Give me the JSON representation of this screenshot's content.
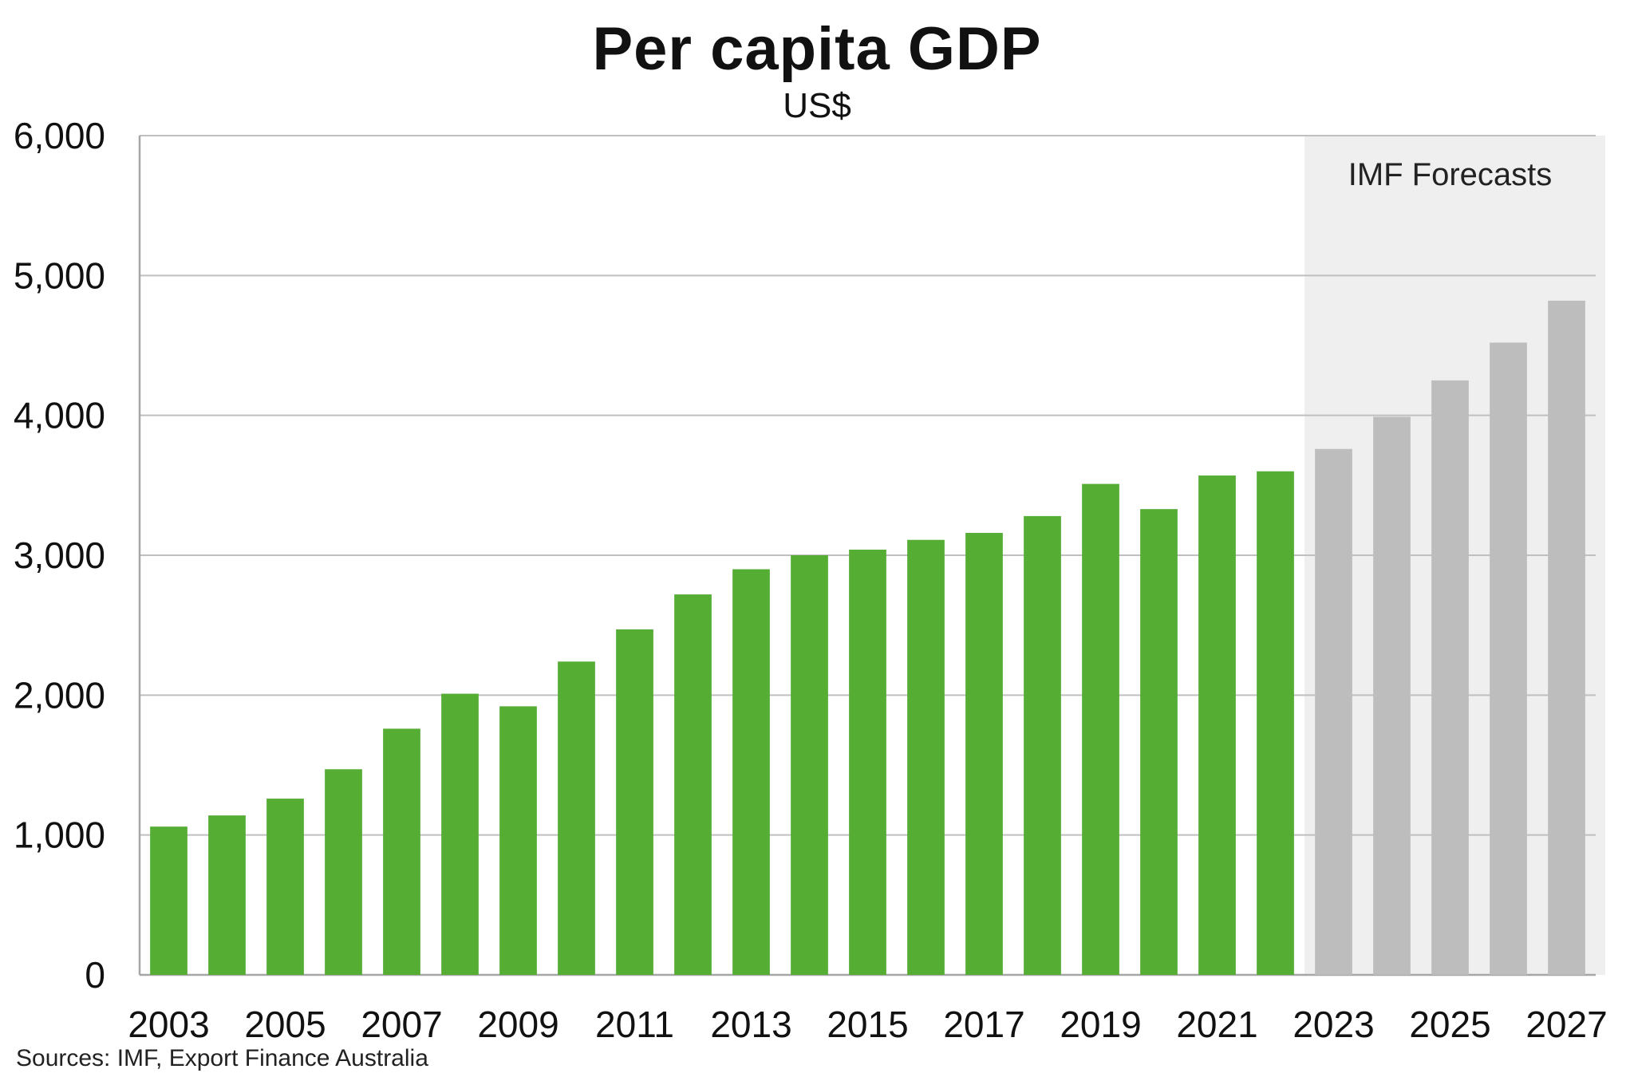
{
  "chart": {
    "title": "Per capita GDP",
    "subtitle": "US$",
    "source": "Sources: IMF, Export Finance Australia",
    "forecast_label": "IMF Forecasts"
  },
  "colors": {
    "actual": "#55ad34",
    "forecast": "#bdbdbd",
    "forecast_shade": "#efefef",
    "grid": "#bfbfbf",
    "axis": "#a6a6a6"
  },
  "chart_data": {
    "type": "bar",
    "title": "Per capita GDP",
    "subtitle": "US$",
    "ylim": [
      0,
      6000
    ],
    "yticks": [
      0,
      1000,
      2000,
      3000,
      4000,
      5000,
      6000
    ],
    "ytick_labels": [
      "0",
      "1,000",
      "2,000",
      "3,000",
      "4,000",
      "5,000",
      "6,000"
    ],
    "categories": [
      "2003",
      "2004",
      "2005",
      "2006",
      "2007",
      "2008",
      "2009",
      "2010",
      "2011",
      "2012",
      "2013",
      "2014",
      "2015",
      "2016",
      "2017",
      "2018",
      "2019",
      "2020",
      "2021",
      "2022",
      "2023",
      "2024",
      "2025",
      "2026",
      "2027"
    ],
    "xtick_labels": [
      "2003",
      "2005",
      "2007",
      "2009",
      "2011",
      "2013",
      "2015",
      "2017",
      "2019",
      "2021",
      "2023",
      "2025",
      "2027"
    ],
    "series": [
      {
        "values": [
          1060,
          1140,
          1260,
          1470,
          1760,
          2010,
          1920,
          2240,
          2470,
          2720,
          2900,
          3000,
          3040,
          3110,
          3160,
          3280,
          3510,
          3330,
          3570,
          3600,
          null,
          null,
          null,
          null,
          null
        ]
      },
      {
        "values": [
          null,
          null,
          null,
          null,
          null,
          null,
          null,
          null,
          null,
          null,
          null,
          null,
          null,
          null,
          null,
          null,
          null,
          null,
          null,
          null,
          3760,
          3990,
          4250,
          4520,
          4820
        ]
      }
    ],
    "forecast_start": "2023",
    "grid": true,
    "annotations": [
      "IMF Forecasts"
    ]
  }
}
